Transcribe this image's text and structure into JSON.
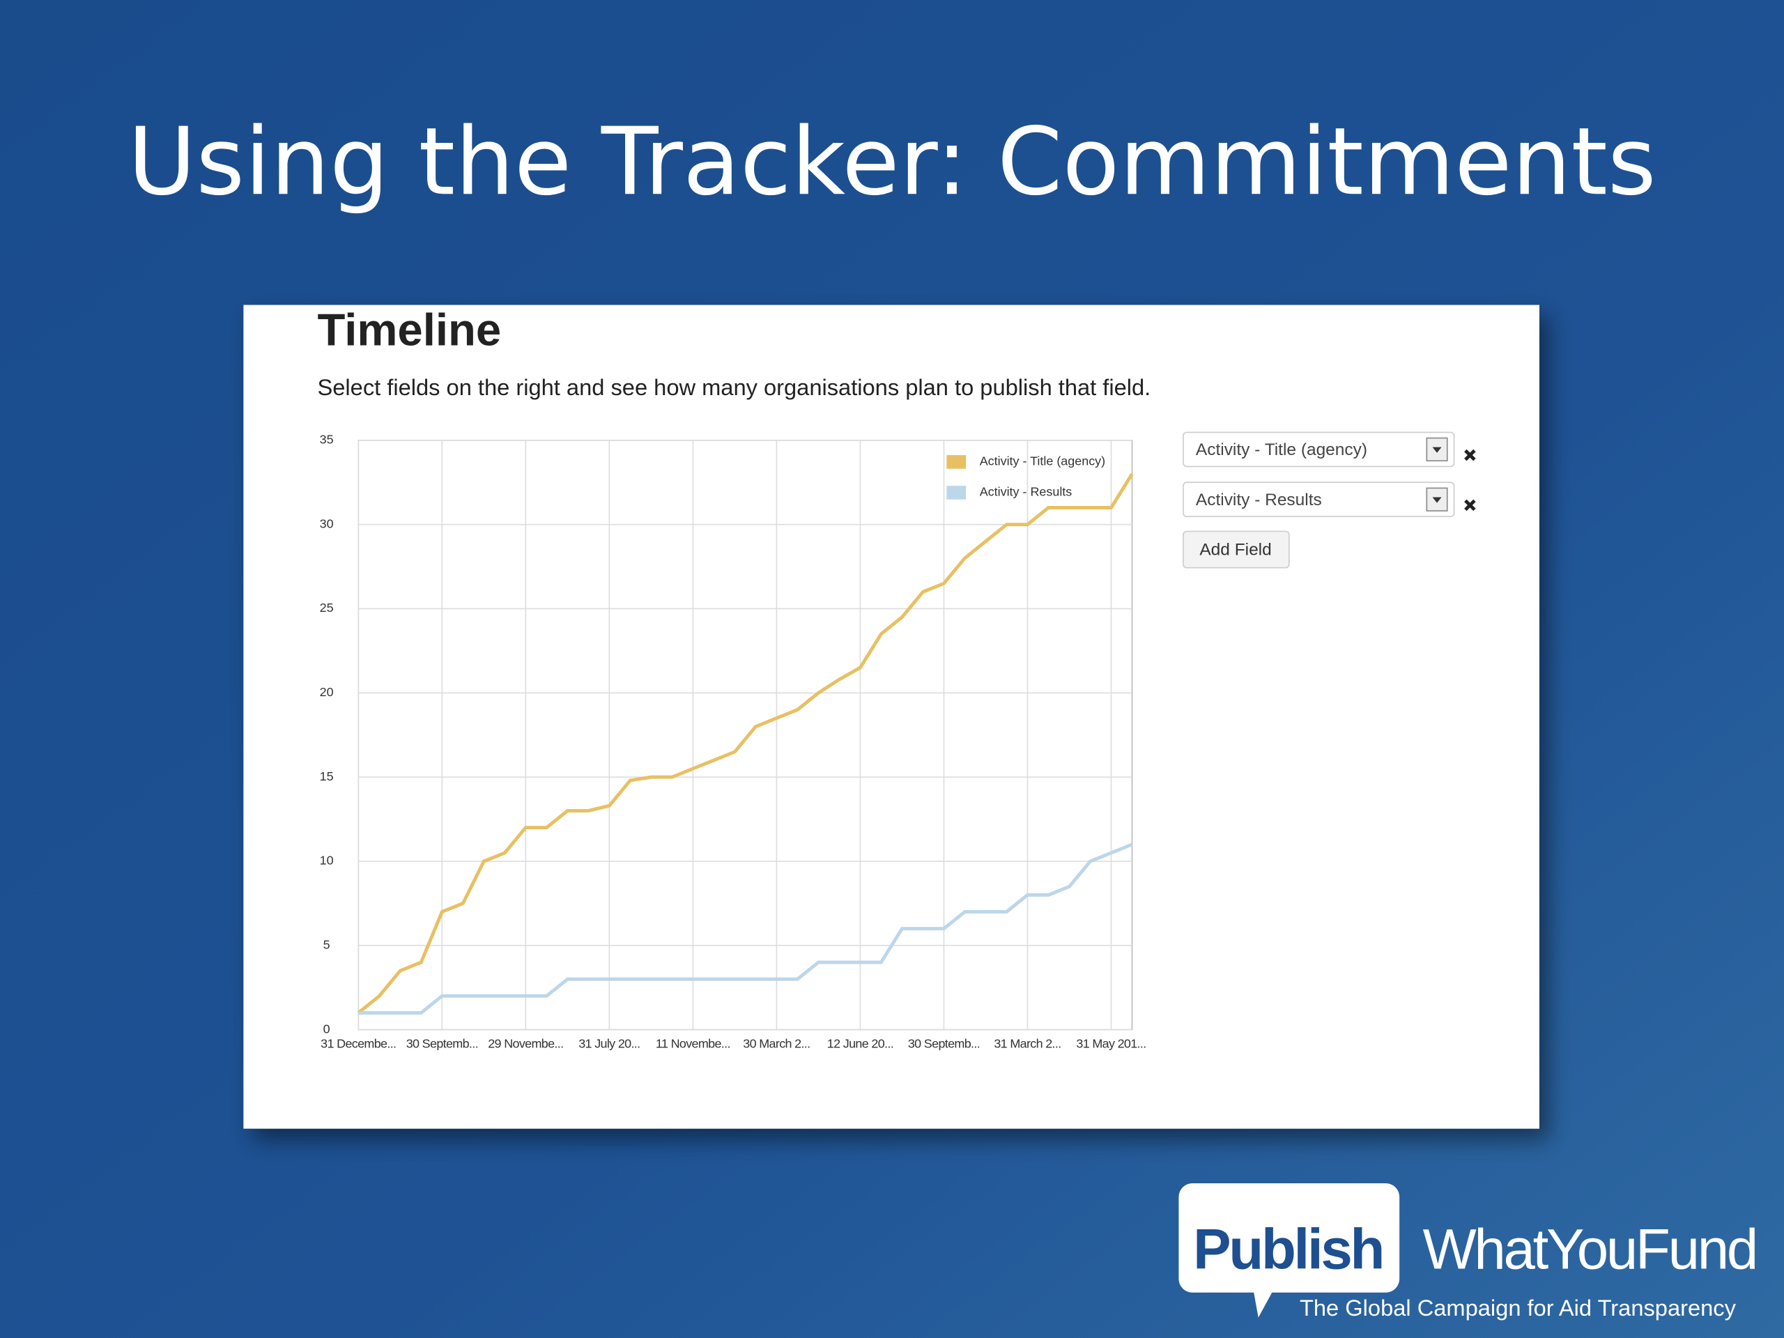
{
  "title": "Using the Tracker: Commitments",
  "panel": {
    "heading": "Timeline",
    "description": "Select fields on the right and see how many organisations plan to publish that field.",
    "fields": [
      "Activity - Title (agency)",
      "Activity - Results"
    ],
    "button": "Add Field"
  },
  "logo": {
    "word1": "Publish",
    "word2": "WhatYouFund",
    "tagline": "The Global Campaign for Aid Transparency"
  },
  "chart_data": {
    "type": "line",
    "categories": [
      "31 Decembe...",
      null,
      null,
      null,
      "30 Septemb...",
      null,
      null,
      null,
      "29 Novembe...",
      null,
      null,
      null,
      "31 July 20...",
      null,
      null,
      null,
      "11 Novembe...",
      null,
      null,
      null,
      "30 March 2...",
      null,
      null,
      null,
      "12 June 20...",
      null,
      null,
      null,
      "30 Septemb...",
      null,
      null,
      null,
      "31 March 2...",
      null,
      null,
      null,
      "31 May 201...",
      null
    ],
    "series": [
      {
        "name": "Activity - Title (agency)",
        "color": "#e8c063",
        "values": [
          1,
          2,
          3.5,
          4,
          7,
          7.5,
          10,
          10.5,
          12,
          12,
          13,
          13,
          13.3,
          14.8,
          15,
          15,
          15.5,
          16,
          16.5,
          18,
          18.5,
          19,
          20,
          20.8,
          21.5,
          23.5,
          24.5,
          26,
          26.5,
          28,
          29,
          30,
          30,
          31,
          31,
          31,
          31,
          33
        ]
      },
      {
        "name": "Activity - Results",
        "color": "#bcd6ea",
        "values": [
          1,
          1,
          1,
          1,
          2,
          2,
          2,
          2,
          2,
          2,
          3,
          3,
          3,
          3,
          3,
          3,
          3,
          3,
          3,
          3,
          3,
          3,
          4,
          4,
          4,
          4,
          6,
          6,
          6,
          7,
          7,
          7,
          8,
          8,
          8.5,
          10,
          10.5,
          11
        ]
      }
    ],
    "ylim": [
      0,
      35
    ],
    "yticks": [
      0,
      5,
      10,
      15,
      20,
      25,
      30,
      35
    ],
    "grid": true,
    "legend": "top-right"
  }
}
